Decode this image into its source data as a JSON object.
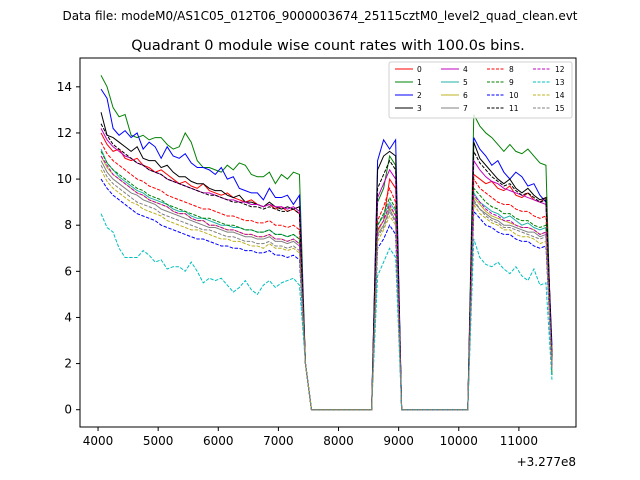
{
  "chart_data": {
    "type": "line",
    "suptitle": "Data file: modeM0/AS1C05_012T06_9000003674_25115cztM0_level2_quad_clean.evt",
    "title": "Quadrant 0 module wise count rates with 100.0s bins.",
    "xlabel": "",
    "ylabel": "",
    "x_offset_label": "+3.277e8",
    "xlim": [
      3700,
      11950
    ],
    "ylim": [
      -0.75,
      15.25
    ],
    "xticks": [
      4000,
      5000,
      6000,
      7000,
      8000,
      9000,
      10000,
      11000
    ],
    "yticks": [
      0,
      2,
      4,
      6,
      8,
      10,
      12,
      14
    ],
    "legend_location": "top-right",
    "segments": [
      {
        "x_start": 4050,
        "x_end": 7350,
        "step": 100
      },
      {
        "x_start": 7450,
        "x_end": 7550,
        "step": 100
      },
      {
        "x_start": 8550,
        "x_end": 9050,
        "step": 100
      },
      {
        "x_start": 10150,
        "x_end": 11550,
        "step": 100
      }
    ],
    "series": [
      {
        "name": "0",
        "color": "#ff0000",
        "dash": "solid",
        "seg1": [
          12.0,
          11.5,
          11.2,
          11.3,
          10.9,
          10.8,
          10.9,
          10.6,
          10.5,
          10.3,
          10.4,
          10.2,
          10.0,
          9.8,
          9.9,
          9.7,
          9.6,
          9.8,
          9.5,
          9.4,
          9.3,
          9.4,
          9.2,
          9.1,
          9.0,
          9.1,
          8.9,
          8.8,
          8.9,
          8.7,
          8.8,
          8.6,
          8.7,
          8.5
        ],
        "peak": [
          0,
          7.8,
          8.2,
          10.0,
          9.6,
          0
        ],
        "seg3": [
          0,
          10.2,
          10.0,
          9.8,
          9.9,
          9.6,
          9.5,
          9.7,
          9.3,
          9.2,
          9.4,
          9.1,
          9.0,
          9.2,
          2.5
        ]
      },
      {
        "name": "1",
        "color": "#008000",
        "dash": "solid",
        "seg1": [
          14.5,
          14.0,
          13.1,
          12.7,
          12.8,
          11.9,
          11.8,
          11.9,
          11.7,
          11.8,
          11.8,
          11.5,
          11.3,
          11.4,
          12.0,
          11.6,
          10.8,
          10.5,
          10.5,
          10.4,
          10.3,
          10.6,
          10.4,
          10.7,
          10.6,
          10.2,
          10.1,
          10.1,
          10.3,
          9.8,
          10.2,
          10.0,
          10.3,
          10.2
        ],
        "peak": [
          0,
          9.0,
          9.6,
          11.0,
          10.6,
          0
        ],
        "seg3": [
          0,
          12.8,
          12.3,
          12.0,
          11.8,
          11.5,
          11.2,
          11.5,
          11.2,
          11.1,
          11.3,
          11.0,
          10.7,
          10.6,
          1.5
        ]
      },
      {
        "name": "2",
        "color": "#0000ff",
        "dash": "solid",
        "seg1": [
          13.9,
          13.5,
          12.2,
          11.9,
          12.1,
          11.8,
          12.0,
          11.3,
          11.6,
          11.4,
          10.9,
          11.4,
          11.0,
          10.9,
          11.1,
          10.7,
          10.5,
          10.5,
          10.4,
          10.2,
          10.5,
          10.0,
          10.1,
          9.6,
          9.5,
          9.4,
          9.4,
          9.1,
          9.6,
          9.2,
          9.2,
          9.3,
          8.9,
          9.3
        ],
        "peak": [
          0,
          10.8,
          11.7,
          11.3,
          11.7,
          0
        ],
        "seg3": [
          0,
          11.8,
          11.3,
          11.0,
          10.6,
          10.8,
          10.3,
          10.0,
          10.3,
          10.1,
          9.7,
          9.8,
          9.3,
          9.0,
          2.8
        ]
      },
      {
        "name": "3",
        "color": "#000000",
        "dash": "solid",
        "seg1": [
          12.9,
          11.9,
          11.8,
          11.6,
          11.4,
          11.2,
          11.4,
          10.9,
          10.8,
          10.8,
          10.5,
          10.6,
          10.3,
          10.1,
          10.1,
          9.9,
          9.8,
          9.8,
          9.6,
          9.5,
          9.5,
          9.3,
          9.2,
          9.3,
          9.0,
          9.0,
          8.9,
          8.8,
          9.0,
          8.8,
          8.7,
          8.8,
          8.7,
          8.8
        ],
        "peak": [
          0,
          10.4,
          11.0,
          11.2,
          11.0,
          0
        ],
        "seg3": [
          0,
          11.6,
          10.9,
          10.6,
          10.3,
          10.0,
          9.8,
          10.0,
          9.6,
          9.4,
          9.6,
          9.3,
          9.1,
          9.2,
          2.4
        ]
      },
      {
        "name": "4",
        "color": "#c000c0",
        "dash": "solid",
        "seg1": [
          12.2,
          11.7,
          11.4,
          11.2,
          11.0,
          10.9,
          10.7,
          10.6,
          10.4,
          10.3,
          10.2,
          10.0,
          9.9,
          9.8,
          9.7,
          9.6,
          9.5,
          9.4,
          9.4,
          9.3,
          9.2,
          9.1,
          9.1,
          9.0,
          9.0,
          8.9,
          8.9,
          8.8,
          8.9,
          8.8,
          8.8,
          8.7,
          8.8,
          8.6
        ],
        "peak": [
          0,
          9.2,
          9.8,
          10.4,
          10.0,
          0
        ],
        "seg3": [
          0,
          10.8,
          10.4,
          10.1,
          9.9,
          9.8,
          9.6,
          9.5,
          9.4,
          9.3,
          9.2,
          9.1,
          9.0,
          8.9,
          2.2
        ]
      },
      {
        "name": "5",
        "color": "#20b2aa",
        "dash": "solid",
        "seg1": [
          11.3,
          10.7,
          10.4,
          10.1,
          9.9,
          9.7,
          9.5,
          9.4,
          9.2,
          9.1,
          9.0,
          8.9,
          8.7,
          8.6,
          8.6,
          8.4,
          8.3,
          8.3,
          8.2,
          8.1,
          8.0,
          8.0,
          7.9,
          7.9,
          7.8,
          7.8,
          7.7,
          7.7,
          7.8,
          7.6,
          7.6,
          7.5,
          7.6,
          7.4
        ],
        "peak": [
          0,
          8.0,
          8.4,
          9.0,
          8.6,
          0
        ],
        "seg3": [
          0,
          9.4,
          9.0,
          8.8,
          8.6,
          8.5,
          8.3,
          8.4,
          8.2,
          8.0,
          8.1,
          7.9,
          7.8,
          7.9,
          2.0
        ]
      },
      {
        "name": "6",
        "color": "#bdb020",
        "dash": "solid",
        "seg1": [
          11.0,
          10.5,
          10.2,
          10.0,
          9.8,
          9.6,
          9.4,
          9.3,
          9.1,
          9.0,
          8.9,
          8.8,
          8.6,
          8.5,
          8.5,
          8.3,
          8.2,
          8.2,
          8.0,
          8.0,
          7.9,
          7.8,
          7.8,
          7.7,
          7.6,
          7.6,
          7.5,
          7.5,
          7.6,
          7.4,
          7.4,
          7.3,
          7.4,
          7.2
        ],
        "peak": [
          0,
          7.7,
          8.2,
          8.8,
          8.4,
          0
        ],
        "seg3": [
          0,
          9.2,
          8.9,
          8.6,
          8.4,
          8.3,
          8.2,
          8.1,
          8.0,
          7.9,
          7.9,
          7.8,
          7.6,
          7.7,
          1.9
        ]
      },
      {
        "name": "7",
        "color": "#808080",
        "dash": "solid",
        "seg1": [
          10.8,
          10.3,
          10.0,
          9.8,
          9.6,
          9.4,
          9.3,
          9.1,
          9.0,
          8.9,
          8.7,
          8.6,
          8.5,
          8.4,
          8.3,
          8.2,
          8.1,
          8.0,
          7.9,
          7.9,
          7.8,
          7.7,
          7.7,
          7.6,
          7.5,
          7.5,
          7.4,
          7.4,
          7.5,
          7.3,
          7.3,
          7.2,
          7.3,
          7.1
        ],
        "peak": [
          0,
          7.6,
          8.0,
          8.7,
          8.2,
          0
        ],
        "seg3": [
          0,
          9.0,
          8.7,
          8.5,
          8.3,
          8.2,
          8.0,
          8.0,
          7.9,
          7.8,
          7.7,
          7.7,
          7.5,
          7.6,
          1.9
        ]
      },
      {
        "name": "8",
        "color": "#ff0000",
        "dash": "dashed",
        "seg1": [
          11.6,
          11.1,
          10.8,
          10.6,
          10.4,
          10.2,
          10.0,
          9.9,
          9.7,
          9.6,
          9.5,
          9.3,
          9.2,
          9.1,
          9.0,
          8.9,
          8.8,
          8.7,
          8.7,
          8.6,
          8.5,
          8.4,
          8.4,
          8.3,
          8.2,
          8.2,
          8.1,
          8.1,
          8.2,
          8.0,
          8.0,
          7.9,
          8.0,
          7.8
        ],
        "peak": [
          0,
          8.2,
          8.8,
          9.6,
          9.0,
          0
        ],
        "seg3": [
          0,
          10.0,
          9.6,
          9.4,
          9.2,
          9.0,
          8.9,
          8.9,
          8.7,
          8.6,
          8.6,
          8.4,
          8.3,
          8.4,
          2.1
        ]
      },
      {
        "name": "9",
        "color": "#008000",
        "dash": "dashed",
        "seg1": [
          11.2,
          10.7,
          10.4,
          10.2,
          10.0,
          9.8,
          9.6,
          9.5,
          9.3,
          9.2,
          9.1,
          8.9,
          8.8,
          8.7,
          8.6,
          8.5,
          8.4,
          8.3,
          8.3,
          8.2,
          8.1,
          8.0,
          8.0,
          7.9,
          7.8,
          7.8,
          7.7,
          7.7,
          7.8,
          7.6,
          7.6,
          7.5,
          7.6,
          7.4
        ],
        "peak": [
          0,
          8.0,
          8.5,
          9.2,
          8.7,
          0
        ],
        "seg3": [
          0,
          9.6,
          9.3,
          9.0,
          8.8,
          8.7,
          8.5,
          8.5,
          8.3,
          8.2,
          8.2,
          8.0,
          7.9,
          8.0,
          2.0
        ]
      },
      {
        "name": "10",
        "color": "#0000ff",
        "dash": "dashed",
        "seg1": [
          10.0,
          9.6,
          9.3,
          9.1,
          8.9,
          8.7,
          8.5,
          8.4,
          8.3,
          8.2,
          8.0,
          7.9,
          7.8,
          7.7,
          7.6,
          7.5,
          7.4,
          7.4,
          7.3,
          7.2,
          7.1,
          7.1,
          7.0,
          7.0,
          6.9,
          6.9,
          6.8,
          6.8,
          6.9,
          6.7,
          6.7,
          6.6,
          6.7,
          6.5
        ],
        "peak": [
          0,
          7.0,
          7.4,
          8.0,
          7.6,
          0
        ],
        "seg3": [
          0,
          8.6,
          8.3,
          8.0,
          7.9,
          7.7,
          7.6,
          7.6,
          7.4,
          7.3,
          7.3,
          7.1,
          7.0,
          7.1,
          1.8
        ]
      },
      {
        "name": "11",
        "color": "#000000",
        "dash": "dashed",
        "seg1": [
          12.4,
          11.9,
          11.5,
          11.3,
          11.1,
          10.9,
          10.7,
          10.6,
          10.4,
          10.3,
          10.2,
          10.0,
          9.9,
          9.8,
          9.7,
          9.6,
          9.5,
          9.4,
          9.3,
          9.3,
          9.2,
          9.1,
          9.0,
          9.0,
          8.9,
          8.8,
          8.8,
          8.7,
          8.8,
          8.7,
          8.6,
          8.6,
          8.7,
          8.5
        ],
        "peak": [
          0,
          9.6,
          10.2,
          10.8,
          10.4,
          0
        ],
        "seg3": [
          0,
          11.2,
          10.7,
          10.4,
          10.1,
          9.9,
          9.7,
          9.8,
          9.5,
          9.3,
          9.4,
          9.2,
          9.0,
          9.1,
          2.3
        ]
      },
      {
        "name": "12",
        "color": "#c000c0",
        "dash": "dashed",
        "seg1": [
          11.0,
          10.6,
          10.2,
          10.0,
          9.8,
          9.6,
          9.4,
          9.3,
          9.1,
          9.0,
          8.9,
          8.8,
          8.6,
          8.5,
          8.5,
          8.3,
          8.2,
          8.2,
          8.0,
          8.0,
          7.9,
          7.8,
          7.8,
          7.7,
          7.6,
          7.6,
          7.5,
          7.5,
          7.6,
          7.4,
          7.4,
          7.3,
          7.4,
          7.2
        ],
        "peak": [
          0,
          7.8,
          8.2,
          8.9,
          8.4,
          0
        ],
        "seg3": [
          0,
          9.3,
          9.0,
          8.7,
          8.5,
          8.4,
          8.2,
          8.2,
          8.0,
          7.9,
          7.9,
          7.8,
          7.6,
          7.7,
          1.9
        ]
      },
      {
        "name": "13",
        "color": "#00c0c0",
        "dash": "dashed",
        "seg1": [
          8.5,
          7.9,
          7.7,
          7.0,
          6.6,
          6.6,
          6.6,
          6.9,
          6.7,
          6.4,
          6.5,
          6.1,
          6.2,
          6.2,
          6.0,
          6.4,
          6.0,
          5.5,
          5.7,
          5.6,
          5.7,
          5.4,
          5.1,
          5.3,
          5.6,
          5.2,
          5.0,
          5.4,
          5.6,
          5.3,
          5.5,
          5.6,
          5.7,
          5.4
        ],
        "peak": [
          0,
          5.8,
          6.4,
          7.0,
          6.6,
          0
        ],
        "seg3": [
          0,
          7.4,
          6.6,
          6.3,
          6.2,
          6.4,
          6.1,
          5.9,
          6.2,
          5.8,
          5.6,
          6.1,
          5.4,
          5.5,
          1.3
        ]
      },
      {
        "name": "14",
        "color": "#bdb020",
        "dash": "dashed",
        "seg1": [
          10.4,
          9.9,
          9.6,
          9.4,
          9.2,
          9.0,
          8.9,
          8.7,
          8.6,
          8.5,
          8.4,
          8.2,
          8.1,
          8.0,
          7.9,
          7.8,
          7.8,
          7.7,
          7.6,
          7.5,
          7.4,
          7.4,
          7.3,
          7.3,
          7.2,
          7.1,
          7.1,
          7.0,
          7.2,
          7.0,
          7.0,
          6.9,
          7.0,
          6.8
        ],
        "peak": [
          0,
          7.3,
          7.8,
          8.4,
          8.0,
          0
        ],
        "seg3": [
          0,
          8.9,
          8.5,
          8.3,
          8.1,
          8.0,
          7.8,
          7.8,
          7.6,
          7.5,
          7.5,
          7.4,
          7.2,
          7.3,
          1.8
        ]
      },
      {
        "name": "15",
        "color": "#808080",
        "dash": "dashed",
        "seg1": [
          10.6,
          10.1,
          9.8,
          9.6,
          9.4,
          9.2,
          9.0,
          8.9,
          8.8,
          8.7,
          8.5,
          8.4,
          8.3,
          8.2,
          8.1,
          8.0,
          7.9,
          7.8,
          7.8,
          7.7,
          7.6,
          7.5,
          7.5,
          7.4,
          7.3,
          7.3,
          7.2,
          7.2,
          7.3,
          7.1,
          7.1,
          7.0,
          7.1,
          6.9
        ],
        "peak": [
          0,
          7.5,
          7.9,
          8.6,
          8.1,
          0
        ],
        "seg3": [
          0,
          9.1,
          8.7,
          8.4,
          8.2,
          8.1,
          7.9,
          7.9,
          7.8,
          7.7,
          7.6,
          7.5,
          7.4,
          7.5,
          1.8
        ]
      }
    ]
  }
}
